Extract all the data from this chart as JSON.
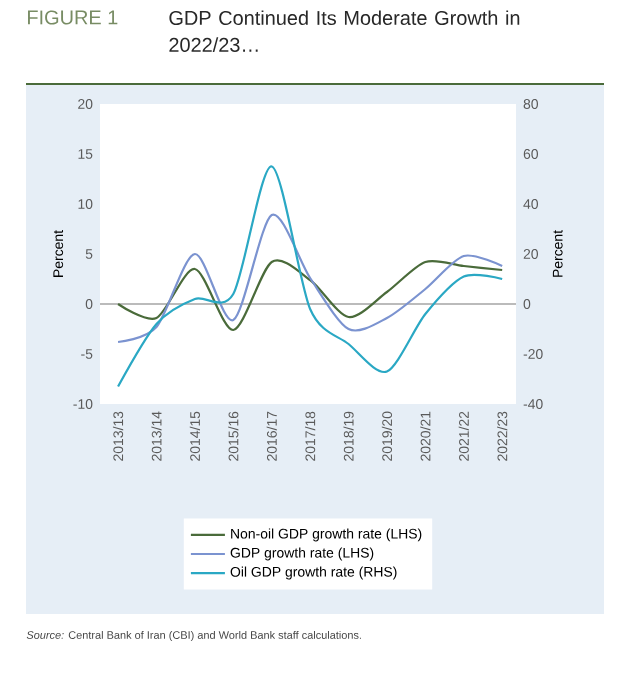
{
  "chart_data": {
    "type": "line",
    "title": "GDP Continued Its Moderate Growth in 2022/23…",
    "ylabel": "Percent",
    "y2label": "Percent",
    "categories": [
      "2013/13",
      "2013/14",
      "2014/15",
      "2015/16",
      "2016/17",
      "2017/18",
      "2018/19",
      "2019/20",
      "2020/21",
      "2021/22",
      "2022/23"
    ],
    "series": [
      {
        "name": "Non-oil GDP growth rate (LHS)",
        "color": "#4a6b3a",
        "values": [
          0,
          -1.4,
          3.5,
          -2.6,
          4.2,
          2.4,
          -1.3,
          1.2,
          4.2,
          3.8,
          3.4
        ]
      },
      {
        "name": "GDP growth rate (LHS)",
        "color": "#7b93d0",
        "values": [
          -3.8,
          -2.3,
          5.0,
          -1.6,
          8.9,
          2.6,
          -2.5,
          -1.4,
          1.5,
          4.8,
          3.8
        ]
      },
      {
        "name": "Oil GDP growth rate (RHS)",
        "color": "#2aa8c4",
        "axis": "y2",
        "values": [
          -33,
          -8,
          2,
          4,
          55,
          -2,
          -16,
          -27,
          -4,
          11,
          10
        ]
      }
    ],
    "ylim": [
      -10,
      20
    ],
    "yticks": [
      -10,
      -5,
      0,
      5,
      10,
      15,
      20
    ],
    "y2lim": [
      -40,
      80
    ],
    "y2ticks": [
      -40,
      -20,
      0,
      20,
      40,
      60,
      80
    ],
    "ref_lines": [
      {
        "axis": "y",
        "value": 0,
        "color": "#bbbbbb"
      }
    ],
    "legend": "bottom",
    "annotations": [
      "FIGURE 1",
      "*Source:* Central Bank of Iran (CBI) and World Bank staff calculations."
    ]
  }
}
